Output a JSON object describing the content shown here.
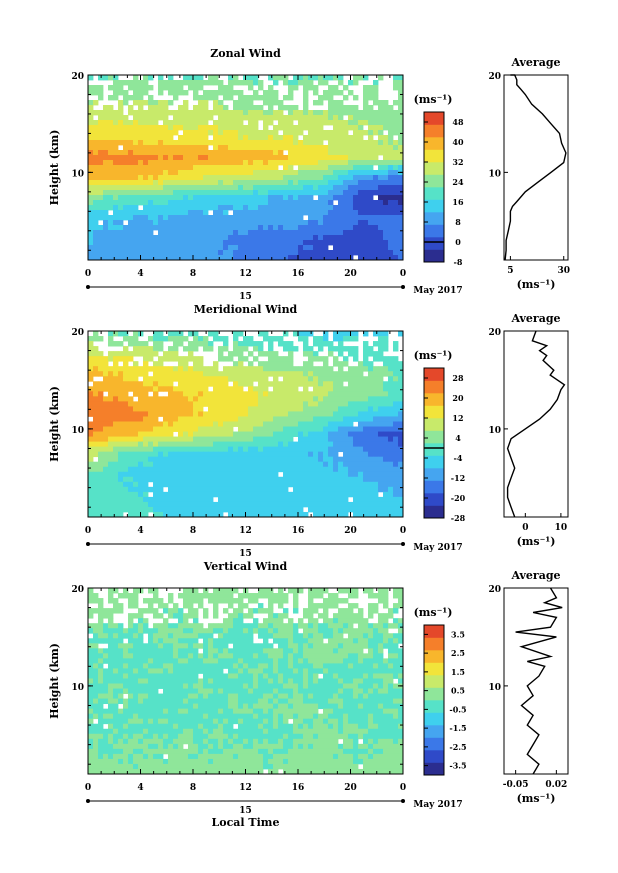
{
  "chart_data": [
    {
      "type": "heatmap",
      "title": "Zonal Wind",
      "xlabel": "",
      "ylabel": "Height (km)",
      "xlim": [
        0,
        24
      ],
      "ylim": [
        1,
        20
      ],
      "xticks": [
        "0",
        "4",
        "8",
        "12",
        "16",
        "20",
        "0"
      ],
      "yticks": [
        "10",
        "20"
      ],
      "date_day": "15",
      "date_month": "May 2017",
      "colorbar": {
        "unit_label": "(ms⁻¹)",
        "min": -8,
        "max": 52,
        "ticks": [
          "48",
          "40",
          "32",
          "24",
          "16",
          "8",
          "0",
          "-8"
        ],
        "zero_line": true
      },
      "grid": false,
      "values_description_grid_rows_height_km": [
        20,
        18,
        16,
        14,
        12,
        10,
        8,
        6,
        4,
        2
      ],
      "values_grid_cols_local_hour": [
        0,
        3,
        6,
        9,
        12,
        15,
        18,
        21,
        24
      ],
      "values": [
        [
          22,
          22,
          22,
          22,
          22,
          22,
          22,
          22,
          22
        ],
        [
          26,
          26,
          26,
          26,
          24,
          24,
          24,
          24,
          24
        ],
        [
          30,
          30,
          30,
          30,
          28,
          28,
          28,
          26,
          26
        ],
        [
          36,
          36,
          34,
          34,
          32,
          32,
          30,
          28,
          26
        ],
        [
          44,
          44,
          42,
          42,
          40,
          38,
          34,
          30,
          28
        ],
        [
          38,
          38,
          36,
          32,
          30,
          26,
          22,
          8,
          6
        ],
        [
          24,
          20,
          18,
          16,
          14,
          12,
          10,
          -2,
          -6
        ],
        [
          14,
          12,
          12,
          10,
          10,
          10,
          8,
          2,
          4
        ],
        [
          12,
          10,
          10,
          8,
          6,
          4,
          2,
          -2,
          4
        ],
        [
          10,
          8,
          8,
          8,
          6,
          2,
          0,
          -2,
          2
        ]
      ],
      "profile": {
        "title": "Average",
        "xlabel": "(ms⁻¹)",
        "xticks": [
          "5",
          "30"
        ],
        "xlim": [
          2,
          32
        ],
        "ylim": [
          1,
          20
        ],
        "yticks": [
          "10",
          "20"
        ],
        "x": [
          2.5,
          3,
          3,
          4,
          5,
          5,
          6,
          8,
          12,
          18,
          24,
          30,
          31,
          29,
          28,
          24,
          20,
          15,
          12,
          10,
          8,
          8,
          7,
          5
        ],
        "y": [
          1,
          2,
          3,
          4,
          5,
          6,
          6.5,
          7,
          8,
          9,
          10,
          11,
          12,
          13,
          14,
          15,
          16,
          17,
          18,
          18.5,
          19,
          19.5,
          20,
          20
        ]
      }
    },
    {
      "type": "heatmap",
      "title": "Meridional Wind",
      "xlabel": "",
      "ylabel": "Height (km)",
      "xlim": [
        0,
        24
      ],
      "ylim": [
        1,
        20
      ],
      "xticks": [
        "0",
        "4",
        "8",
        "12",
        "16",
        "20",
        "0"
      ],
      "yticks": [
        "10",
        "20"
      ],
      "date_day": "15",
      "date_month": "May 2017",
      "colorbar": {
        "unit_label": "(ms⁻¹)",
        "min": -28,
        "max": 32,
        "ticks": [
          "28",
          "20",
          "12",
          "4",
          "-4",
          "-12",
          "-20",
          "-28"
        ],
        "zero_line": true
      },
      "grid": false,
      "values": [
        [
          2,
          2,
          0,
          0,
          -2,
          -2,
          -4,
          -4,
          -4
        ],
        [
          12,
          10,
          8,
          6,
          4,
          2,
          2,
          0,
          0
        ],
        [
          18,
          16,
          14,
          12,
          10,
          8,
          6,
          4,
          2
        ],
        [
          22,
          20,
          18,
          16,
          14,
          10,
          8,
          4,
          0
        ],
        [
          26,
          24,
          20,
          16,
          12,
          8,
          4,
          -4,
          -8
        ],
        [
          22,
          18,
          14,
          10,
          6,
          0,
          -6,
          -16,
          -20
        ],
        [
          8,
          0,
          -4,
          -6,
          -6,
          -6,
          -8,
          -12,
          -16
        ],
        [
          2,
          -4,
          -6,
          -6,
          -6,
          -6,
          -6,
          -8,
          -10
        ],
        [
          0,
          -2,
          -6,
          -6,
          -6,
          -6,
          -6,
          -6,
          -8
        ],
        [
          0,
          0,
          -4,
          -6,
          -6,
          -6,
          -6,
          -6,
          -6
        ]
      ],
      "profile": {
        "title": "Average",
        "xlabel": "(ms⁻¹)",
        "xticks": [
          "0",
          "10"
        ],
        "xlim": [
          -6,
          12
        ],
        "ylim": [
          1,
          20
        ],
        "yticks": [
          "10",
          "20"
        ],
        "x": [
          -3,
          -4,
          -5,
          -5,
          -4,
          -3,
          -4,
          -5,
          -4,
          0,
          4,
          7,
          9,
          10,
          11,
          9,
          7,
          8,
          5,
          6,
          4,
          6,
          2,
          3
        ],
        "y": [
          1,
          2,
          3,
          4,
          5,
          6,
          7,
          8,
          9,
          10,
          11,
          12,
          13,
          14,
          14.5,
          15,
          15.5,
          16,
          17,
          17.5,
          18,
          18.5,
          19,
          20
        ]
      }
    },
    {
      "type": "heatmap",
      "title": "Vertical Wind",
      "xlabel": "Local Time",
      "ylabel": "Height (km)",
      "xlim": [
        0,
        24
      ],
      "ylim": [
        1,
        20
      ],
      "xticks": [
        "0",
        "4",
        "8",
        "12",
        "16",
        "20",
        "0"
      ],
      "yticks": [
        "10",
        "20"
      ],
      "date_day": "15",
      "date_month": "May 2017",
      "colorbar": {
        "unit_label": "(ms⁻¹)",
        "min": -4,
        "max": 4,
        "ticks": [
          "3.5",
          "2.5",
          "1.5",
          "0.5",
          "-0.5",
          "-1.5",
          "-2.5",
          "-3.5"
        ],
        "zero_line": false
      },
      "grid": false,
      "values_note": "near-uniform field around -0.5 to 0.5",
      "values": [
        [
          0.4,
          0.2,
          0.3,
          0.1,
          0.2,
          0.3,
          0.1,
          0.2,
          0.3
        ],
        [
          0.1,
          0.2,
          0.0,
          0.2,
          0.1,
          0.0,
          0.2,
          0.1,
          0.0
        ],
        [
          0.0,
          -0.1,
          0.1,
          0.0,
          -0.1,
          0.1,
          0.0,
          0.1,
          0.0
        ],
        [
          -0.1,
          0.0,
          -0.1,
          0.0,
          -0.1,
          0.0,
          0.1,
          0.0,
          -0.1
        ],
        [
          0.0,
          -0.1,
          0.0,
          -0.1,
          0.0,
          -0.1,
          0.0,
          -0.1,
          0.0
        ],
        [
          -0.1,
          0.0,
          -0.2,
          0.0,
          -0.1,
          0.0,
          -0.1,
          0.0,
          -0.1
        ],
        [
          0.0,
          -0.1,
          0.0,
          -0.1,
          0.0,
          0.1,
          0.0,
          -0.1,
          0.0
        ],
        [
          -0.1,
          0.0,
          -0.1,
          0.0,
          -0.1,
          0.0,
          0.1,
          0.0,
          -0.1
        ],
        [
          0.1,
          0.0,
          0.1,
          0.0,
          0.1,
          0.0,
          0.1,
          0.0,
          0.1
        ],
        [
          0.2,
          0.1,
          0.1,
          0.2,
          0.1,
          0.1,
          0.2,
          0.1,
          0.1
        ]
      ],
      "profile": {
        "title": "Average",
        "xlabel": "(ms⁻¹)",
        "xticks": [
          "-0.05",
          "0.02"
        ],
        "xlim": [
          -0.07,
          0.04
        ],
        "ylim": [
          1,
          20
        ],
        "yticks": [
          "10",
          "20"
        ],
        "x": [
          -0.02,
          -0.01,
          -0.03,
          -0.02,
          -0.01,
          -0.03,
          -0.02,
          -0.04,
          -0.02,
          -0.03,
          -0.01,
          0.0,
          -0.03,
          0.01,
          -0.04,
          0.02,
          -0.05,
          0.01,
          0.02,
          -0.02,
          0.03,
          0.0,
          0.02,
          0.01
        ],
        "y": [
          1,
          2,
          3,
          4,
          5,
          6,
          7,
          8,
          9,
          10,
          11,
          12,
          12.5,
          13,
          14,
          15,
          15.5,
          16,
          17,
          17.5,
          18,
          18.5,
          19,
          20
        ]
      }
    }
  ]
}
